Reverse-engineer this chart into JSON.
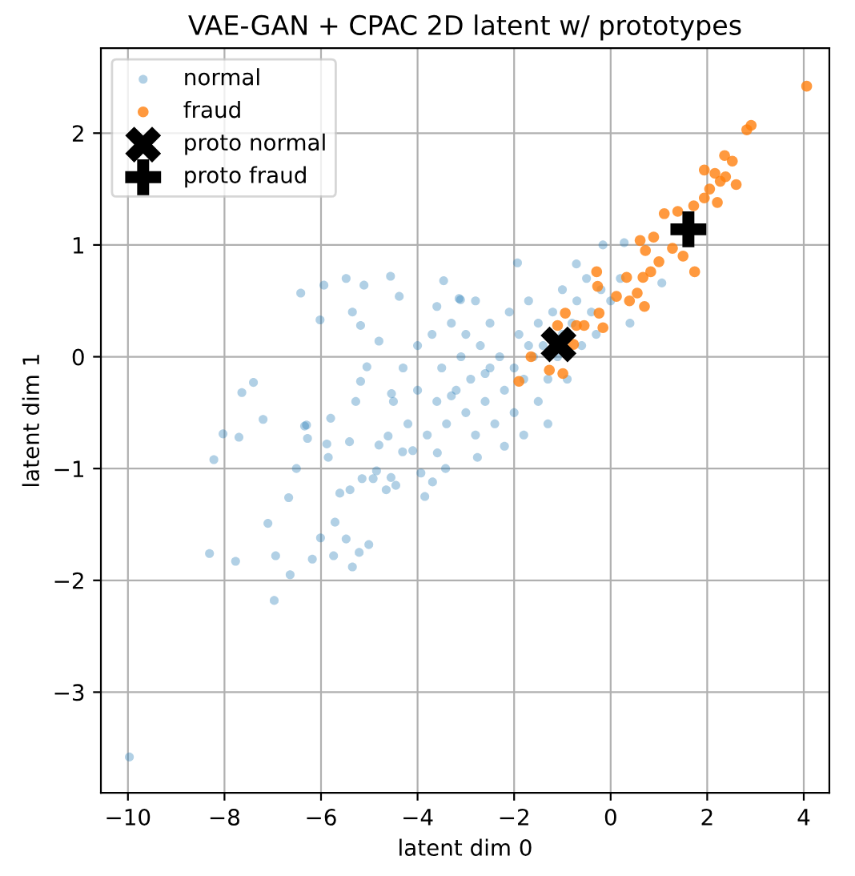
{
  "chart_data": {
    "type": "scatter",
    "title": "VAE-GAN + CPAC 2D latent w/ prototypes",
    "xlabel": "latent dim 0",
    "ylabel": "latent dim 1",
    "xlim": [
      -10.56,
      4.53
    ],
    "ylim": [
      -3.9,
      2.76
    ],
    "xticks": [
      {
        "value": -10,
        "label": "−10"
      },
      {
        "value": -8,
        "label": "−8"
      },
      {
        "value": -6,
        "label": "−6"
      },
      {
        "value": -4,
        "label": "−4"
      },
      {
        "value": -2,
        "label": "−2"
      },
      0,
      2,
      4
    ],
    "yticks": [
      {
        "value": -3,
        "label": "−3"
      },
      {
        "value": -2,
        "label": "−2"
      },
      {
        "value": -1,
        "label": "−1"
      },
      0,
      1,
      2
    ],
    "grid": true,
    "legend": "top left",
    "series": [
      {
        "name": "normal",
        "color": "#1f77b4",
        "marker": "circle",
        "x": [
          -9.97,
          -8.31,
          -7.77,
          -7.1,
          -6.94,
          -6.64,
          -6.97,
          -6.67,
          -6.51,
          -8.22,
          -8.03,
          -7.7,
          -7.2,
          -6.34,
          -6.28,
          -5.88,
          -5.85,
          -5.8,
          -5.41,
          -6.01,
          -5.71,
          -5.48,
          -5.74,
          -6.18,
          -5.35,
          -5.21,
          -5.01,
          -5.61,
          -5.4,
          -5.15,
          -4.92,
          -4.65,
          -4.45,
          -4.55,
          -3.85,
          -3.69,
          -4.85,
          -3.93,
          -3.42,
          -2.76,
          -4.8,
          -4.61,
          -4.1,
          -3.59,
          -4.31,
          -6.42,
          -5.94,
          -5.48,
          -5.11,
          -4.56,
          -6.02,
          -5.35,
          -4.38,
          -5.18,
          -4.8,
          -7.4,
          -7.64,
          -5.28,
          -5.18,
          -5.05,
          -4.54,
          -6.3,
          -3.46,
          -3.11,
          -4.5,
          -4.3,
          -4.2,
          -4.0,
          -4.0,
          -3.8,
          -3.7,
          -3.6,
          -3.5,
          -3.4,
          -3.3,
          -3.2,
          -3.1,
          -3.0,
          -3.0,
          -2.9,
          -2.8,
          -2.7,
          -2.6,
          -2.5,
          -2.5,
          -2.4,
          -2.3,
          -2.2,
          -2.1,
          -2.0,
          -2.0,
          -1.9,
          -1.8,
          -1.7,
          -1.6,
          -1.5,
          -1.5,
          -1.4,
          -1.3,
          -1.2,
          -1.1,
          -1.0,
          -1.0,
          -0.9,
          -0.8,
          -0.7,
          -0.6,
          -0.5,
          -0.4,
          -0.3,
          -0.2,
          0.0,
          0.2,
          0.4,
          -2.2,
          -1.8,
          -3.6,
          -2.8,
          -1.3,
          -0.16,
          0.28,
          -0.71,
          -1.93,
          1.06,
          -3.14,
          -1.7,
          -2.6,
          -3.3
        ],
        "values": [
          -3.58,
          -1.76,
          -1.83,
          -1.49,
          -1.78,
          -1.95,
          -2.18,
          -1.26,
          -1.0,
          -0.92,
          -0.69,
          -0.72,
          -0.56,
          -0.62,
          -0.73,
          -0.78,
          -0.9,
          -0.55,
          -0.76,
          -1.62,
          -1.48,
          -1.63,
          -1.78,
          -1.81,
          -1.88,
          -1.75,
          -1.68,
          -1.22,
          -1.19,
          -1.09,
          -1.09,
          -1.19,
          -1.15,
          -1.08,
          -1.25,
          -1.12,
          -1.02,
          -1.04,
          -1.0,
          -0.9,
          -0.79,
          -0.71,
          -0.84,
          -0.86,
          -0.85,
          0.57,
          0.64,
          0.7,
          0.64,
          0.72,
          0.33,
          0.4,
          0.54,
          0.28,
          0.14,
          -0.23,
          -0.32,
          -0.4,
          -0.22,
          -0.09,
          -0.33,
          -0.61,
          0.68,
          0.51,
          -0.4,
          -0.1,
          -0.6,
          0.1,
          -0.3,
          -0.7,
          0.2,
          -0.4,
          -0.1,
          -0.6,
          0.3,
          -0.3,
          0.0,
          -0.5,
          0.2,
          -0.2,
          -0.7,
          0.1,
          -0.4,
          0.3,
          -0.1,
          -0.6,
          0.0,
          -0.3,
          0.4,
          -0.1,
          -0.5,
          0.2,
          -0.2,
          0.5,
          0.0,
          -0.4,
          0.3,
          0.1,
          -0.2,
          0.4,
          0.0,
          0.6,
          0.2,
          -0.2,
          0.3,
          0.5,
          0.1,
          0.7,
          0.4,
          0.2,
          0.6,
          0.5,
          0.7,
          0.3,
          -0.8,
          -0.7,
          0.45,
          0.5,
          -0.6,
          1.0,
          1.02,
          0.83,
          0.84,
          0.66,
          0.52,
          0.1,
          -0.15,
          -0.35
        ]
      },
      {
        "name": "fraud",
        "color": "#ff7f0e",
        "marker": "circle",
        "x": [
          4.06,
          2.82,
          2.91,
          2.36,
          2.52,
          2.16,
          2.27,
          2.6,
          2.05,
          1.94,
          2.21,
          1.72,
          1.11,
          1.39,
          1.74,
          1.5,
          1.28,
          0.89,
          0.61,
          0.72,
          1.0,
          0.83,
          0.67,
          0.33,
          0.55,
          0.7,
          0.39,
          -0.29,
          -0.27,
          0.12,
          -0.24,
          -0.16,
          -0.55,
          -0.71,
          -0.94,
          -1.1,
          -1.65,
          -1.9,
          -1.27,
          -0.99,
          -0.77,
          1.94,
          2.38
        ],
        "values": [
          2.42,
          2.03,
          2.07,
          1.8,
          1.75,
          1.64,
          1.57,
          1.54,
          1.5,
          1.42,
          1.38,
          1.35,
          1.28,
          1.3,
          0.76,
          0.9,
          0.97,
          1.07,
          1.04,
          0.95,
          0.85,
          0.76,
          0.71,
          0.71,
          0.57,
          0.45,
          0.5,
          0.76,
          0.63,
          0.54,
          0.39,
          0.26,
          0.28,
          0.28,
          0.39,
          0.28,
          0.0,
          -0.22,
          -0.12,
          -0.15,
          0.11,
          1.67,
          1.61
        ]
      },
      {
        "name": "proto normal",
        "color": "#000000",
        "marker": "cross",
        "x": [
          -1.08
        ],
        "values": [
          0.11
        ]
      },
      {
        "name": "proto fraud",
        "color": "#000000",
        "marker": "plus",
        "x": [
          1.61
        ],
        "values": [
          1.14
        ]
      }
    ]
  }
}
